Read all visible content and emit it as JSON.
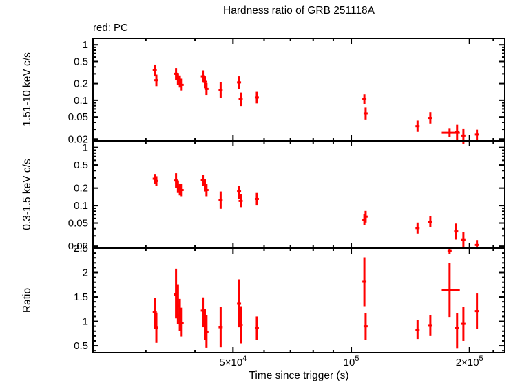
{
  "title": "Hardness ratio of GRB 251118A",
  "subtitle": "red: PC",
  "colors": {
    "data": "#ff0000",
    "axis": "#000000",
    "background": "#ffffff"
  },
  "chart_data": {
    "type": "scatter",
    "title": "Hardness ratio of GRB 251118A",
    "annotation": "red: PC",
    "xlabel": "Time since trigger (s)",
    "x_scale": "log",
    "x_range": [
      22000,
      246000
    ],
    "x_major_ticks": [
      {
        "value": 50000,
        "base": "5×10",
        "sup": "4",
        "label": "5×10⁴"
      },
      {
        "value": 100000,
        "base": "10",
        "sup": "5",
        "label": "10⁵"
      },
      {
        "value": 200000,
        "base": "2×10",
        "sup": "5",
        "label": "2×10⁵"
      }
    ],
    "x_minor_ticks": [
      30000,
      40000,
      60000,
      70000,
      80000,
      90000,
      230000
    ],
    "legend_position": "top-left",
    "grid": false,
    "panels": [
      {
        "name": "hard",
        "ylabel": "1.51-10 keV c/s",
        "y_scale": "log",
        "y_range": [
          0.0185,
          1.3
        ],
        "y_major_ticks": [
          {
            "value": 1,
            "label": "1"
          },
          {
            "value": 0.5,
            "label": "0.5"
          },
          {
            "value": 0.2,
            "label": "0.2"
          },
          {
            "value": 0.1,
            "label": "0.1"
          },
          {
            "value": 0.05,
            "label": "0.05"
          },
          {
            "value": 0.02,
            "label": "0.02"
          }
        ],
        "y_minor_ticks": [
          0.9,
          0.8,
          0.7,
          0.6,
          0.4,
          0.3,
          0.09,
          0.08,
          0.07,
          0.06,
          0.04,
          0.03
        ],
        "points": [
          {
            "t": 31600,
            "y": 0.35,
            "ylo": 0.27,
            "yhi": 0.44
          },
          {
            "t": 31900,
            "y": 0.23,
            "ylo": 0.18,
            "yhi": 0.29
          },
          {
            "t": 35800,
            "y": 0.3,
            "ylo": 0.23,
            "yhi": 0.38
          },
          {
            "t": 36200,
            "y": 0.25,
            "ylo": 0.19,
            "yhi": 0.31
          },
          {
            "t": 36600,
            "y": 0.22,
            "ylo": 0.17,
            "yhi": 0.28
          },
          {
            "t": 37000,
            "y": 0.19,
            "ylo": 0.15,
            "yhi": 0.245
          },
          {
            "t": 41900,
            "y": 0.27,
            "ylo": 0.21,
            "yhi": 0.345
          },
          {
            "t": 42400,
            "y": 0.215,
            "ylo": 0.165,
            "yhi": 0.27
          },
          {
            "t": 42800,
            "y": 0.16,
            "ylo": 0.125,
            "yhi": 0.205
          },
          {
            "t": 46500,
            "y": 0.155,
            "ylo": 0.11,
            "yhi": 0.215
          },
          {
            "t": 51800,
            "y": 0.21,
            "ylo": 0.16,
            "yhi": 0.27
          },
          {
            "t": 52300,
            "y": 0.105,
            "ylo": 0.079,
            "yhi": 0.138
          },
          {
            "t": 57500,
            "y": 0.112,
            "ylo": 0.088,
            "yhi": 0.142
          },
          {
            "t": 108000,
            "y": 0.104,
            "ylo": 0.084,
            "yhi": 0.128
          },
          {
            "t": 108800,
            "y": 0.058,
            "ylo": 0.045,
            "yhi": 0.074
          },
          {
            "t": 147500,
            "y": 0.034,
            "ylo": 0.027,
            "yhi": 0.043
          },
          {
            "t": 159000,
            "y": 0.048,
            "ylo": 0.038,
            "yhi": 0.061
          },
          {
            "t": 178000,
            "y": 0.026,
            "ylo": 0.0215,
            "yhi": 0.0315,
            "tlo": 170000,
            "thi": 189000
          },
          {
            "t": 186000,
            "y": 0.0265,
            "ylo": 0.019,
            "yhi": 0.036
          },
          {
            "t": 193000,
            "y": 0.023,
            "ylo": 0.0165,
            "yhi": 0.031
          },
          {
            "t": 209000,
            "y": 0.024,
            "ylo": 0.019,
            "yhi": 0.0295
          }
        ]
      },
      {
        "name": "soft",
        "ylabel": "0.3-1.5 keV c/s",
        "y_scale": "log",
        "y_range": [
          0.0185,
          1.3
        ],
        "y_major_ticks": [
          {
            "value": 1,
            "label": "1"
          },
          {
            "value": 0.5,
            "label": "0.5"
          },
          {
            "value": 0.2,
            "label": "0.2"
          },
          {
            "value": 0.1,
            "label": "0.1"
          },
          {
            "value": 0.05,
            "label": "0.05"
          },
          {
            "value": 0.02,
            "label": "0.02"
          }
        ],
        "y_minor_ticks": [
          0.9,
          0.8,
          0.7,
          0.6,
          0.4,
          0.3,
          0.09,
          0.08,
          0.07,
          0.06,
          0.04,
          0.03
        ],
        "points": [
          {
            "t": 31600,
            "y": 0.29,
            "ylo": 0.24,
            "yhi": 0.35
          },
          {
            "t": 31900,
            "y": 0.265,
            "ylo": 0.215,
            "yhi": 0.32
          },
          {
            "t": 35800,
            "y": 0.27,
            "ylo": 0.2,
            "yhi": 0.36
          },
          {
            "t": 36200,
            "y": 0.21,
            "ylo": 0.165,
            "yhi": 0.27
          },
          {
            "t": 36600,
            "y": 0.19,
            "ylo": 0.15,
            "yhi": 0.24
          },
          {
            "t": 37000,
            "y": 0.185,
            "ylo": 0.145,
            "yhi": 0.235
          },
          {
            "t": 41900,
            "y": 0.275,
            "ylo": 0.215,
            "yhi": 0.34
          },
          {
            "t": 42400,
            "y": 0.225,
            "ylo": 0.175,
            "yhi": 0.285
          },
          {
            "t": 42800,
            "y": 0.185,
            "ylo": 0.145,
            "yhi": 0.235
          },
          {
            "t": 46500,
            "y": 0.125,
            "ylo": 0.088,
            "yhi": 0.175
          },
          {
            "t": 51800,
            "y": 0.175,
            "ylo": 0.13,
            "yhi": 0.22
          },
          {
            "t": 52300,
            "y": 0.12,
            "ylo": 0.094,
            "yhi": 0.155
          },
          {
            "t": 57500,
            "y": 0.13,
            "ylo": 0.1,
            "yhi": 0.165
          },
          {
            "t": 108000,
            "y": 0.057,
            "ylo": 0.0455,
            "yhi": 0.0715
          },
          {
            "t": 108800,
            "y": 0.0645,
            "ylo": 0.051,
            "yhi": 0.081
          },
          {
            "t": 147500,
            "y": 0.041,
            "ylo": 0.033,
            "yhi": 0.051
          },
          {
            "t": 159000,
            "y": 0.0525,
            "ylo": 0.042,
            "yhi": 0.066
          },
          {
            "t": 178000,
            "y": 0.0165,
            "ylo": 0.0145,
            "yhi": 0.019
          },
          {
            "t": 185000,
            "y": 0.036,
            "ylo": 0.026,
            "yhi": 0.049
          },
          {
            "t": 193000,
            "y": 0.0255,
            "ylo": 0.0185,
            "yhi": 0.035
          },
          {
            "t": 209000,
            "y": 0.021,
            "ylo": 0.0175,
            "yhi": 0.0255
          }
        ]
      },
      {
        "name": "ratio",
        "ylabel": "Ratio",
        "y_scale": "linear",
        "y_range": [
          0.36,
          2.5
        ],
        "y_major_ticks": [
          {
            "value": 2.5,
            "label": "2.5"
          },
          {
            "value": 2,
            "label": "2"
          },
          {
            "value": 1.5,
            "label": "1.5"
          },
          {
            "value": 1,
            "label": "1"
          },
          {
            "value": 0.5,
            "label": "0.5"
          }
        ],
        "y_minor_ticks": [
          0.4,
          0.6,
          0.7,
          0.8,
          0.9,
          1.1,
          1.2,
          1.3,
          1.4,
          1.6,
          1.7,
          1.8,
          1.9,
          2.1,
          2.2,
          2.3,
          2.4
        ],
        "points": [
          {
            "t": 31600,
            "y": 1.19,
            "ylo": 0.85,
            "yhi": 1.48
          },
          {
            "t": 31900,
            "y": 0.87,
            "ylo": 0.56,
            "yhi": 1.18
          },
          {
            "t": 35800,
            "y": 1.55,
            "ylo": 1.06,
            "yhi": 2.08
          },
          {
            "t": 36200,
            "y": 1.32,
            "ylo": 0.95,
            "yhi": 1.76
          },
          {
            "t": 36600,
            "y": 1.12,
            "ylo": 0.8,
            "yhi": 1.46
          },
          {
            "t": 37000,
            "y": 0.97,
            "ylo": 0.69,
            "yhi": 1.28
          },
          {
            "t": 41900,
            "y": 1.22,
            "ylo": 0.88,
            "yhi": 1.49
          },
          {
            "t": 42400,
            "y": 0.94,
            "ylo": 0.62,
            "yhi": 1.26
          },
          {
            "t": 42800,
            "y": 0.79,
            "ylo": 0.46,
            "yhi": 1.13
          },
          {
            "t": 46500,
            "y": 0.88,
            "ylo": 0.47,
            "yhi": 1.3
          },
          {
            "t": 51800,
            "y": 1.36,
            "ylo": 0.88,
            "yhi": 1.86
          },
          {
            "t": 52300,
            "y": 0.92,
            "ylo": 0.55,
            "yhi": 1.31
          },
          {
            "t": 57500,
            "y": 0.86,
            "ylo": 0.62,
            "yhi": 1.1
          },
          {
            "t": 108000,
            "y": 1.81,
            "ylo": 1.31,
            "yhi": 2.31
          },
          {
            "t": 108800,
            "y": 0.9,
            "ylo": 0.62,
            "yhi": 1.17
          },
          {
            "t": 147500,
            "y": 0.83,
            "ylo": 0.64,
            "yhi": 1.03
          },
          {
            "t": 159000,
            "y": 0.91,
            "ylo": 0.7,
            "yhi": 1.13
          },
          {
            "t": 178000,
            "y": 1.64,
            "ylo": 1.09,
            "yhi": 2.19,
            "tlo": 170000,
            "thi": 189000
          },
          {
            "t": 186000,
            "y": 0.86,
            "ylo": 0.44,
            "yhi": 1.17
          },
          {
            "t": 193000,
            "y": 0.95,
            "ylo": 0.6,
            "yhi": 1.3
          },
          {
            "t": 209000,
            "y": 1.21,
            "ylo": 0.84,
            "yhi": 1.57
          }
        ]
      }
    ]
  }
}
